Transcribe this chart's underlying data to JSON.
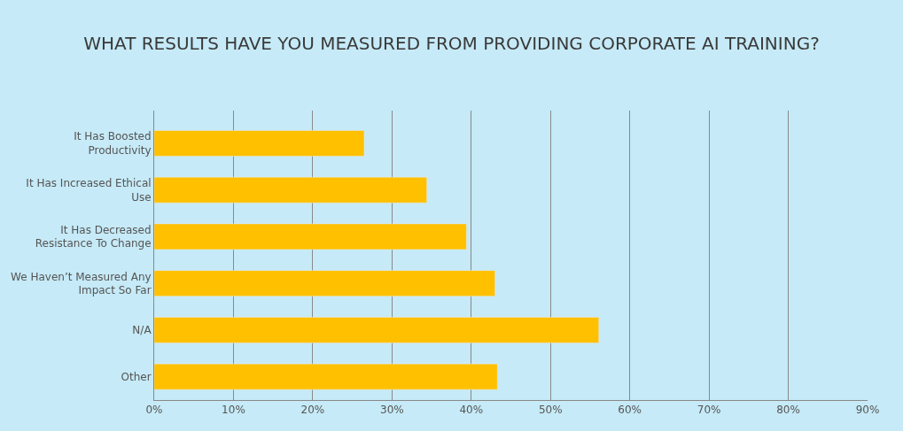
{
  "chart_data": {
    "type": "bar",
    "orientation": "horizontal",
    "title": "WHAT RESULTS HAVE YOU MEASURED FROM PROVIDING CORPORATE AI TRAINING?",
    "categories": [
      "It Has Boosted Productivity",
      "It Has Increased Ethical Use",
      "It Has Decreased Resistance To Change",
      "We Haven’t Measured Any Impact So Far",
      "N/A",
      "Other"
    ],
    "values": [
      26.5,
      34.4,
      39.4,
      43.0,
      56.1,
      43.3
    ],
    "color": "#ffc000",
    "xlim": [
      0,
      90
    ],
    "xticks": [
      {
        "value": 0,
        "label": "0%"
      },
      {
        "value": 10,
        "label": "10%"
      },
      {
        "value": 20,
        "label": "20%"
      },
      {
        "value": 30,
        "label": "30%"
      },
      {
        "value": 40,
        "label": "40%"
      },
      {
        "value": 50,
        "label": "50%"
      },
      {
        "value": 60,
        "label": "60%"
      },
      {
        "value": 70,
        "label": "70%"
      },
      {
        "value": 80,
        "label": "80%"
      },
      {
        "value": 90,
        "label": "90%"
      }
    ],
    "grid": "x"
  }
}
